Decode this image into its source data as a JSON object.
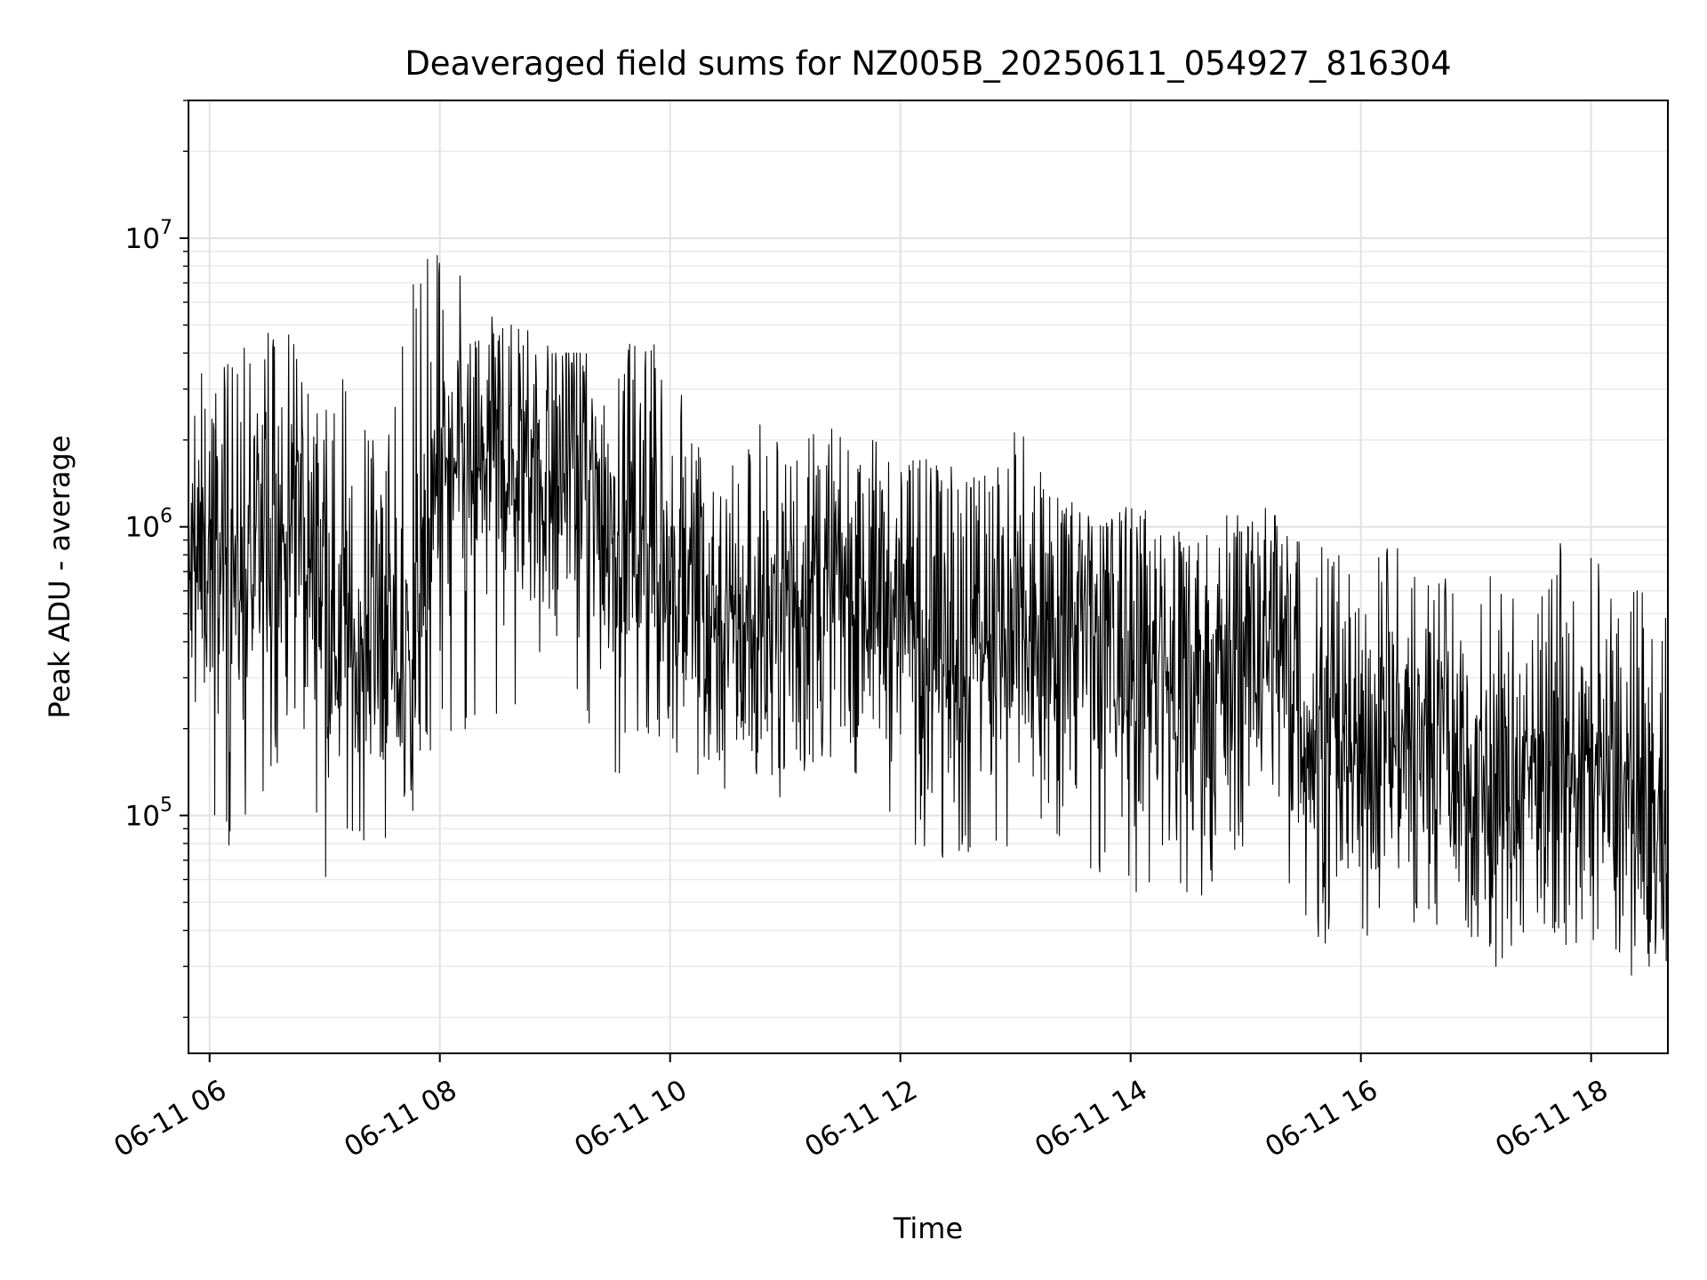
{
  "chart_data": {
    "type": "line",
    "title": "Deaveraged field sums for NZ005B_20250611_054927_816304",
    "xlabel": "Time",
    "ylabel": "Peak ADU - average",
    "yscale": "log",
    "xlim": [
      "2025-06-11T05:49",
      "2025-06-11T18:40"
    ],
    "ylim": [
      15000,
      30000000
    ],
    "xticks": [
      "06-11 06",
      "06-11 08",
      "06-11 10",
      "06-11 12",
      "06-11 14",
      "06-11 16",
      "06-11 18"
    ],
    "yticks": [
      {
        "base": "10",
        "exp": "5"
      },
      {
        "base": "10",
        "exp": "6"
      },
      {
        "base": "10",
        "exp": "7"
      }
    ],
    "grid": true,
    "line_color": "#000000",
    "series": [
      {
        "x": [
          "2025-06-11T05:49",
          "2025-06-11T06:00",
          "2025-06-11T06:15",
          "2025-06-11T06:30",
          "2025-06-11T06:45",
          "2025-06-11T07:00",
          "2025-06-11T07:15",
          "2025-06-11T07:30",
          "2025-06-11T07:45",
          "2025-06-11T08:00",
          "2025-06-11T08:15",
          "2025-06-11T08:30",
          "2025-06-11T08:45",
          "2025-06-11T09:00",
          "2025-06-11T09:15",
          "2025-06-11T09:30",
          "2025-06-11T09:45",
          "2025-06-11T10:00",
          "2025-06-11T10:15",
          "2025-06-11T10:30",
          "2025-06-11T10:45",
          "2025-06-11T11:00",
          "2025-06-11T11:15",
          "2025-06-11T11:30",
          "2025-06-11T11:45",
          "2025-06-11T12:00",
          "2025-06-11T12:15",
          "2025-06-11T12:30",
          "2025-06-11T12:45",
          "2025-06-11T13:00",
          "2025-06-11T13:15",
          "2025-06-11T13:30",
          "2025-06-11T13:45",
          "2025-06-11T14:00",
          "2025-06-11T14:15",
          "2025-06-11T14:30",
          "2025-06-11T14:45",
          "2025-06-11T15:00",
          "2025-06-11T15:15",
          "2025-06-11T15:30",
          "2025-06-11T15:45",
          "2025-06-11T16:00",
          "2025-06-11T16:15",
          "2025-06-11T16:30",
          "2025-06-11T16:45",
          "2025-06-11T17:00",
          "2025-06-11T17:15",
          "2025-06-11T17:30",
          "2025-06-11T17:45",
          "2025-06-11T18:00",
          "2025-06-11T18:15",
          "2025-06-11T18:30",
          "2025-06-11T18:40"
        ],
        "y": [
          600000,
          900000,
          700000,
          800000,
          1000000,
          600000,
          350000,
          400000,
          300000,
          1500000,
          1500000,
          1800000,
          1700000,
          1600000,
          1300000,
          1100000,
          1000000,
          800000,
          600000,
          450000,
          400000,
          550000,
          600000,
          650000,
          600000,
          550000,
          400000,
          400000,
          380000,
          380000,
          400000,
          450000,
          400000,
          350000,
          300000,
          250000,
          300000,
          350000,
          450000,
          200000,
          160000,
          170000,
          200000,
          180000,
          170000,
          140000,
          120000,
          160000,
          160000,
          140000,
          120000,
          100000,
          90000
        ],
        "low": [
          150000,
          80000,
          70000,
          130000,
          200000,
          60000,
          90000,
          70000,
          100000,
          200000,
          180000,
          200000,
          250000,
          400000,
          200000,
          120000,
          200000,
          150000,
          130000,
          110000,
          100000,
          120000,
          150000,
          160000,
          120000,
          90000,
          60000,
          70000,
          60000,
          80000,
          90000,
          70000,
          60000,
          55000,
          50000,
          45000,
          60000,
          80000,
          70000,
          40000,
          35000,
          38000,
          40000,
          38000,
          40000,
          30000,
          30000,
          35000,
          35000,
          33000,
          30000,
          25000,
          28000
        ],
        "high": [
          2000000,
          4800000,
          4500000,
          5000000,
          4500000,
          2500000,
          4000000,
          1500000,
          7000000,
          10000000,
          7000000,
          5000000,
          5000000,
          4000000,
          4000000,
          4000000,
          4500000,
          4000000,
          2000000,
          1500000,
          2400000,
          2000000,
          2500000,
          2000000,
          2000000,
          1800000,
          1700000,
          1600000,
          1500000,
          2300000,
          1600000,
          1200000,
          1000000,
          1200000,
          1100000,
          900000,
          1000000,
          1300000,
          1100000,
          900000,
          900000,
          800000,
          900000,
          700000,
          700000,
          800000,
          700000,
          600000,
          900000,
          800000,
          600000,
          600000,
          500000
        ]
      }
    ]
  }
}
